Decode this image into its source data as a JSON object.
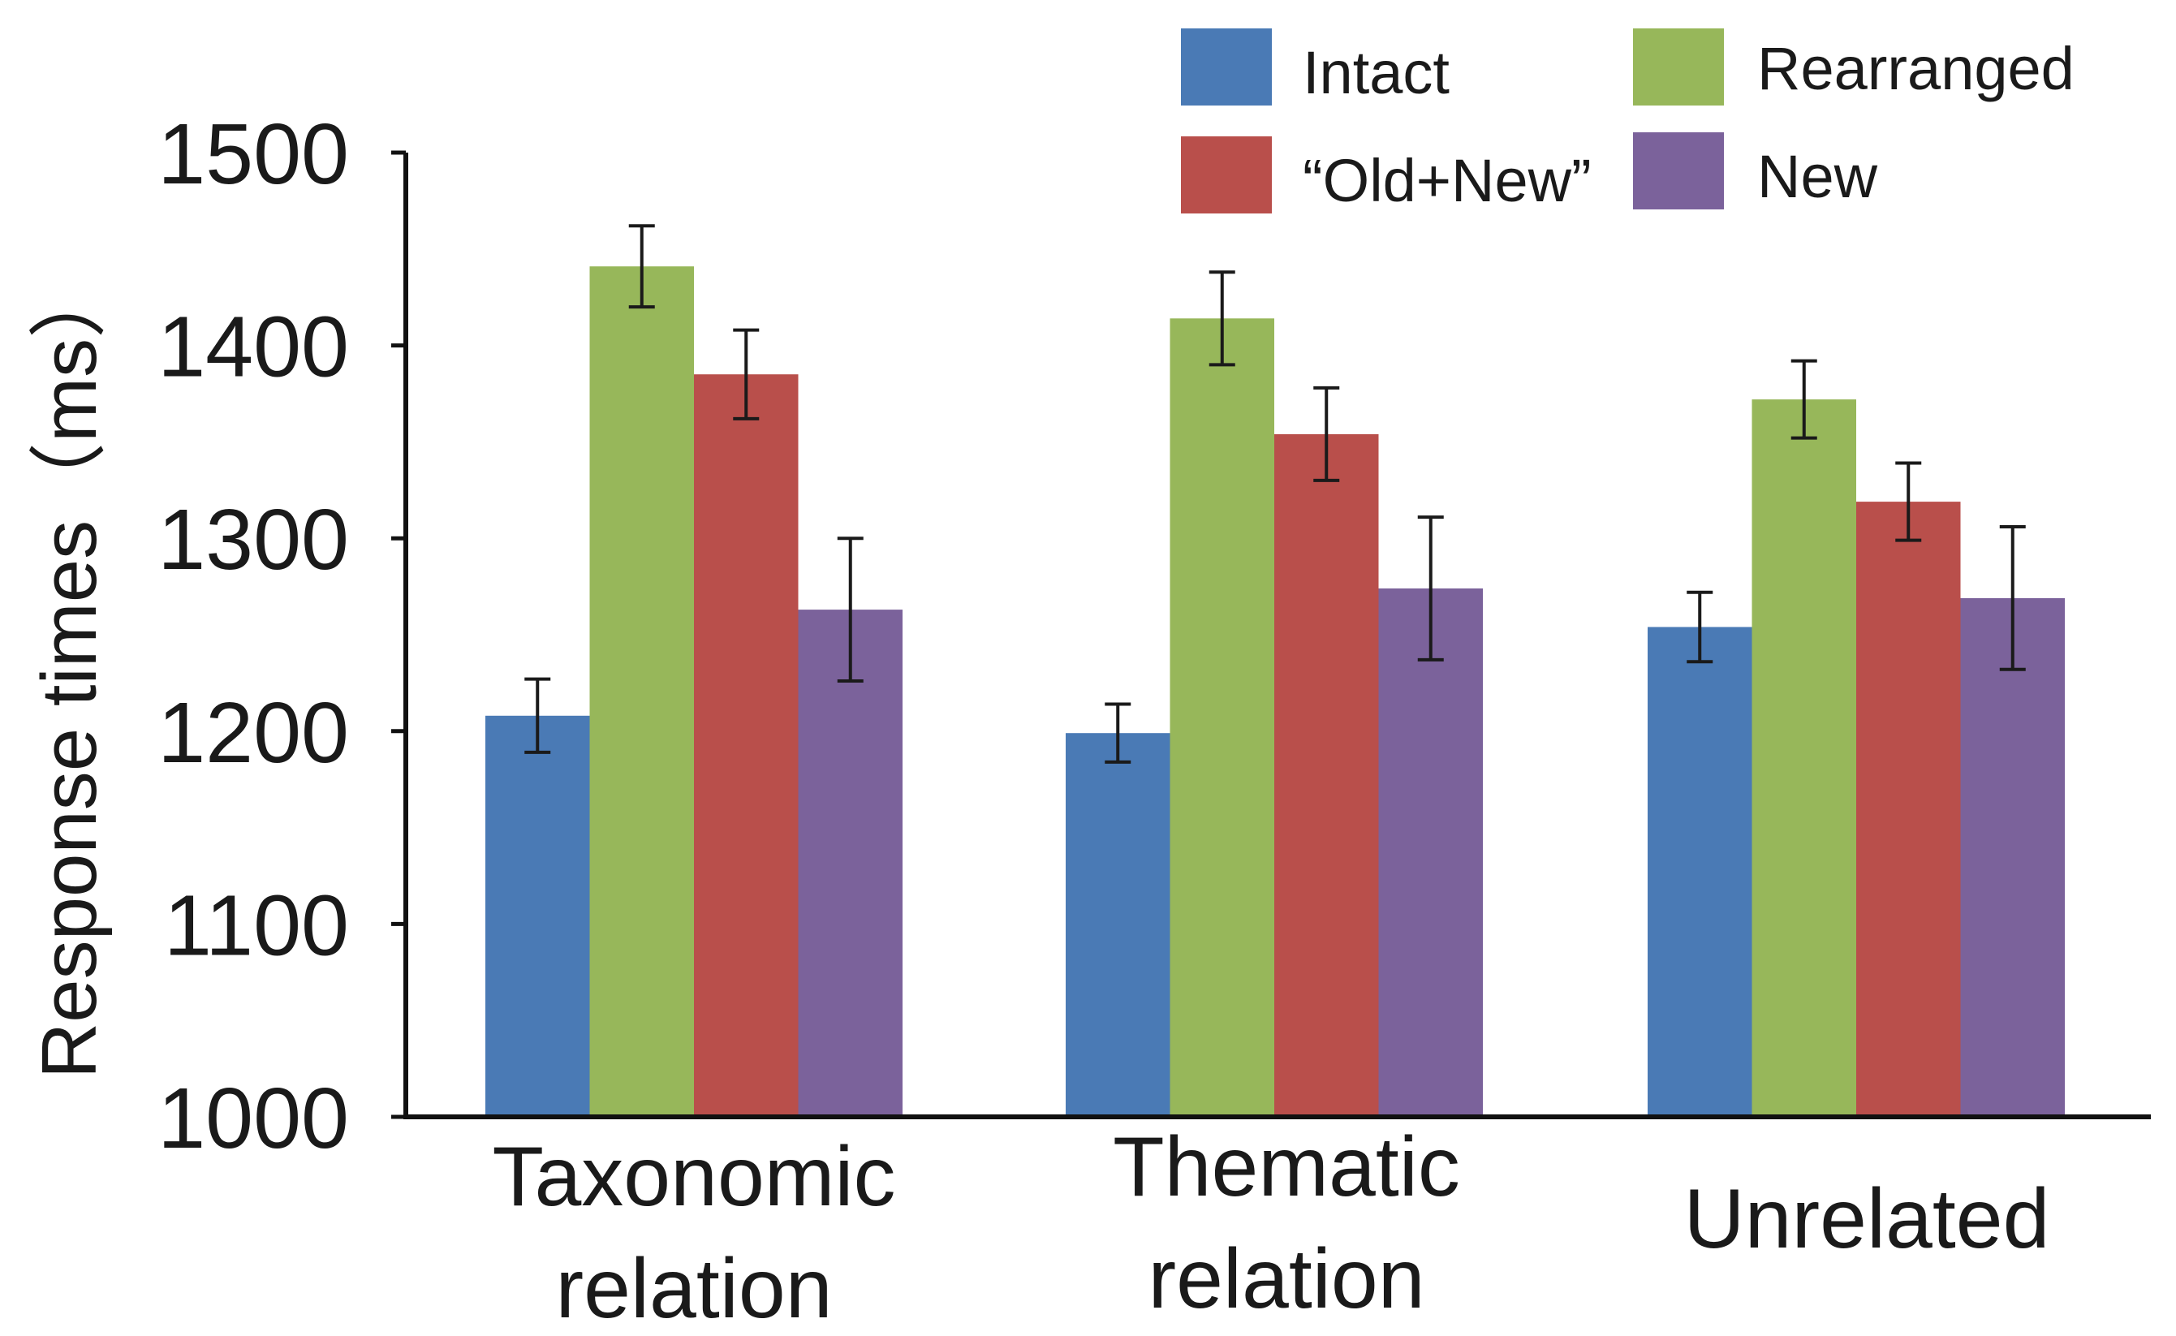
{
  "chart_data": {
    "type": "bar",
    "title": "",
    "xlabel": "",
    "ylabel": "Response times（ms）",
    "ylim": [
      1000,
      1500
    ],
    "yticks": [
      1000,
      1100,
      1200,
      1300,
      1400,
      1500
    ],
    "grid": false,
    "legend_position": "top-right",
    "categories": [
      [
        "Taxonomic",
        "relation"
      ],
      [
        "Thematic",
        "relation"
      ],
      [
        "Unrelated"
      ]
    ],
    "series": [
      {
        "name": "Intact",
        "color": "#4a7ab5",
        "values": [
          1208,
          1199,
          1254
        ],
        "errors": [
          19,
          15,
          18
        ]
      },
      {
        "name": "Rearranged",
        "color": "#97b75a",
        "values": [
          1441,
          1414,
          1372
        ],
        "errors": [
          21,
          24,
          20
        ]
      },
      {
        "name": "“Old+New”",
        "color": "#b94f4b",
        "values": [
          1385,
          1354,
          1319
        ],
        "errors": [
          23,
          24,
          20
        ]
      },
      {
        "name": "New",
        "color": "#7b629b",
        "values": [
          1263,
          1274,
          1269
        ],
        "errors": [
          37,
          37,
          37
        ]
      }
    ]
  }
}
